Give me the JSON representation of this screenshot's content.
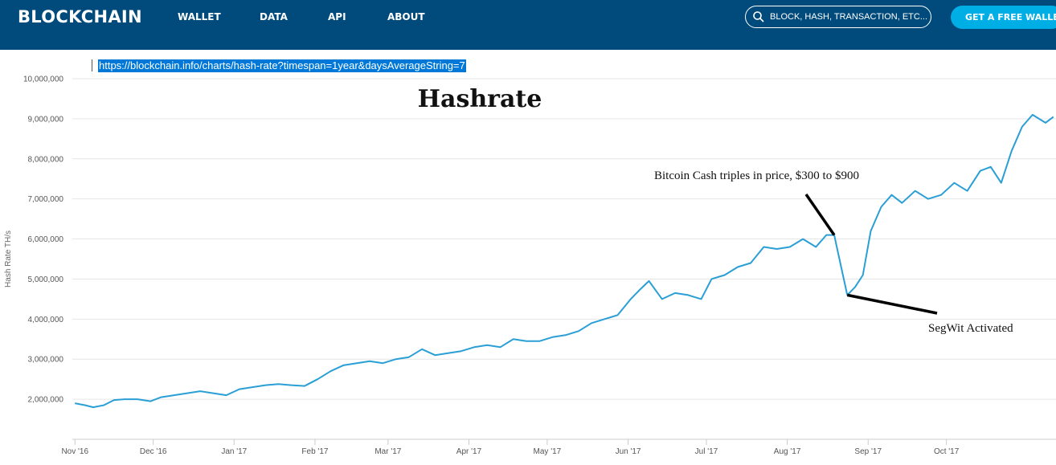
{
  "header": {
    "logo": "BLOCKCHAIN",
    "nav": [
      "WALLET",
      "DATA",
      "API",
      "ABOUT"
    ],
    "search_placeholder": "BLOCK, HASH, TRANSACTION, ETC...",
    "cta_label": "GET A FREE WALLET"
  },
  "url": "https://blockchain.info/charts/hash-rate?timespan=1year&daysAverageString=7",
  "colors": {
    "nav_bg": "#004a7c",
    "cta_bg": "#00aee6",
    "line": "#2a9fd6",
    "selection": "#0078d7"
  },
  "chart_data": {
    "type": "line",
    "title": "Hashrate",
    "ylabel": "Hash Rate TH/s",
    "xlabel": "",
    "xlim": [
      "2016-10-31",
      "2017-11-12"
    ],
    "ylim": [
      1000000,
      10000000
    ],
    "yticks": [
      2000000,
      3000000,
      4000000,
      5000000,
      6000000,
      7000000,
      8000000,
      9000000,
      10000000
    ],
    "ytick_labels": [
      "2,000,000",
      "3,000,000",
      "4,000,000",
      "5,000,000",
      "6,000,000",
      "7,000,000",
      "8,000,000",
      "9,000,000",
      "10,000,000"
    ],
    "xticks": [
      "2016-11-01",
      "2016-12-01",
      "2017-01-01",
      "2017-02-01",
      "2017-03-01",
      "2017-04-01",
      "2017-05-01",
      "2017-06-01",
      "2017-07-01",
      "2017-08-01",
      "2017-09-01",
      "2017-10-01"
    ],
    "xtick_labels": [
      "Nov '16",
      "Dec '16",
      "Jan '17",
      "Feb '17",
      "Mar '17",
      "Apr '17",
      "May '17",
      "Jun '17",
      "Jul '17",
      "Aug '17",
      "Sep '17",
      "Oct '17"
    ],
    "grid": true,
    "series": [
      {
        "x": [
          "2016-11-01",
          "2016-11-05",
          "2016-11-08",
          "2016-11-12",
          "2016-11-16",
          "2016-11-20",
          "2016-11-25",
          "2016-11-30",
          "2016-12-04",
          "2016-12-09",
          "2016-12-14",
          "2016-12-19",
          "2016-12-24",
          "2016-12-29",
          "2017-01-03",
          "2017-01-08",
          "2017-01-13",
          "2017-01-18",
          "2017-01-23",
          "2017-01-28",
          "2017-02-02",
          "2017-02-07",
          "2017-02-12",
          "2017-02-17",
          "2017-02-22",
          "2017-02-27",
          "2017-03-04",
          "2017-03-09",
          "2017-03-14",
          "2017-03-19",
          "2017-03-24",
          "2017-03-29",
          "2017-04-03",
          "2017-04-08",
          "2017-04-13",
          "2017-04-18",
          "2017-04-23",
          "2017-04-28",
          "2017-05-03",
          "2017-05-08",
          "2017-05-13",
          "2017-05-18",
          "2017-05-23",
          "2017-05-28",
          "2017-06-02",
          "2017-06-05",
          "2017-06-09",
          "2017-06-14",
          "2017-06-19",
          "2017-06-24",
          "2017-06-29",
          "2017-07-03",
          "2017-07-08",
          "2017-07-13",
          "2017-07-18",
          "2017-07-23",
          "2017-07-28",
          "2017-08-02",
          "2017-08-07",
          "2017-08-12",
          "2017-08-16",
          "2017-08-19",
          "2017-08-21",
          "2017-08-24",
          "2017-08-27",
          "2017-08-30",
          "2017-09-02",
          "2017-09-06",
          "2017-09-10",
          "2017-09-14",
          "2017-09-19",
          "2017-09-24",
          "2017-09-29",
          "2017-10-04",
          "2017-10-09",
          "2017-10-14",
          "2017-10-18",
          "2017-10-22",
          "2017-10-26",
          "2017-10-30",
          "2017-11-03",
          "2017-11-08",
          "2017-11-11"
        ],
        "y": [
          1900000,
          1850000,
          1800000,
          1850000,
          1980000,
          2000000,
          2000000,
          1950000,
          2050000,
          2100000,
          2150000,
          2200000,
          2150000,
          2100000,
          2250000,
          2300000,
          2350000,
          2380000,
          2350000,
          2330000,
          2500000,
          2700000,
          2850000,
          2900000,
          2950000,
          2900000,
          3000000,
          3050000,
          3250000,
          3100000,
          3150000,
          3200000,
          3300000,
          3350000,
          3300000,
          3500000,
          3450000,
          3450000,
          3550000,
          3600000,
          3700000,
          3900000,
          4000000,
          4100000,
          4500000,
          4700000,
          4950000,
          4500000,
          4650000,
          4600000,
          4500000,
          5000000,
          5100000,
          5300000,
          5400000,
          5800000,
          5750000,
          5800000,
          6000000,
          5800000,
          6100000,
          6100000,
          5500000,
          4600000,
          4800000,
          5100000,
          6200000,
          6800000,
          7100000,
          6900000,
          7200000,
          7000000,
          7100000,
          7400000,
          7200000,
          7700000,
          7800000,
          7400000,
          8200000,
          8800000,
          9100000,
          8900000,
          9050000
        ]
      }
    ],
    "annotations": [
      {
        "text": "Bitcoin Cash triples in price, $300 to $900",
        "x": "2017-08-19",
        "y": 6100000
      },
      {
        "text": "SegWit Activated",
        "x": "2017-08-24",
        "y": 4600000
      }
    ]
  }
}
